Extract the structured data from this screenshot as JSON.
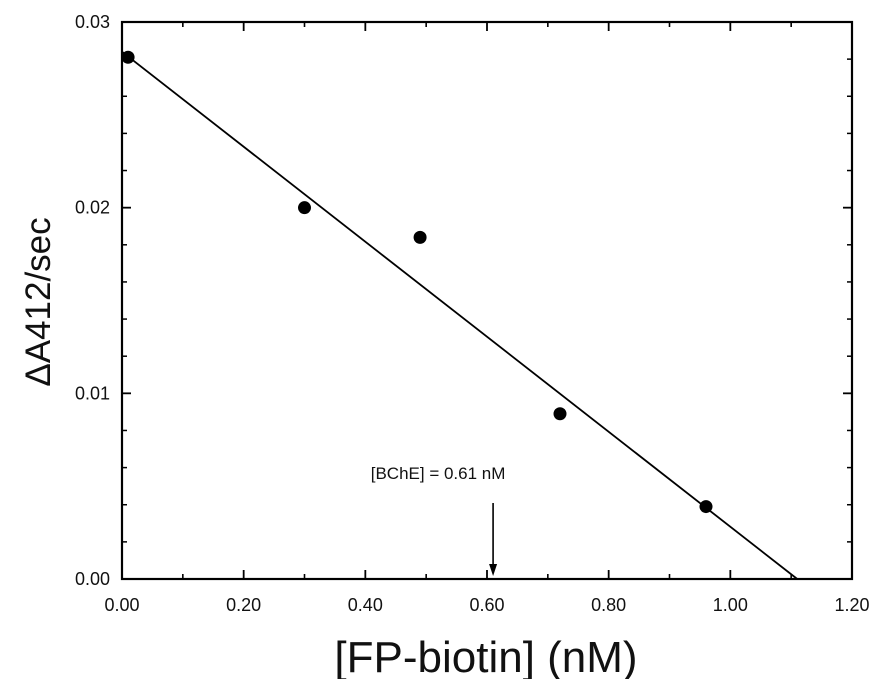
{
  "chart_data": {
    "type": "scatter",
    "title": "",
    "xlabel": "[FP-biotin] (nM)",
    "ylabel": "ΔA412/sec",
    "xlim": [
      0.0,
      1.2
    ],
    "ylim": [
      0.0,
      0.03
    ],
    "x_ticks": [
      0.0,
      0.2,
      0.4,
      0.6,
      0.8,
      1.0,
      1.2
    ],
    "x_tick_labels": [
      "0.00",
      "0.20",
      "0.40",
      "0.60",
      "0.80",
      "1.00",
      "1.20"
    ],
    "y_ticks": [
      0.0,
      0.01,
      0.02,
      0.03
    ],
    "y_tick_labels": [
      "0.00",
      "0.01",
      "0.02",
      "0.03"
    ],
    "grid": false,
    "series": [
      {
        "type": "scatter",
        "x": [
          0.01,
          0.3,
          0.49,
          0.72,
          0.96
        ],
        "y": [
          0.0281,
          0.02,
          0.0184,
          0.0089,
          0.0039
        ]
      },
      {
        "type": "line",
        "x": [
          0.0,
          1.11
        ],
        "y": [
          0.0284,
          0.0
        ]
      }
    ],
    "annotations": [
      {
        "text": "[BChE] = 0.61 nM",
        "x": 0.61,
        "arrow": true
      }
    ]
  },
  "colors": {
    "marker": "#000000",
    "line": "#000000",
    "axis": "#000000",
    "background": "#ffffff"
  }
}
